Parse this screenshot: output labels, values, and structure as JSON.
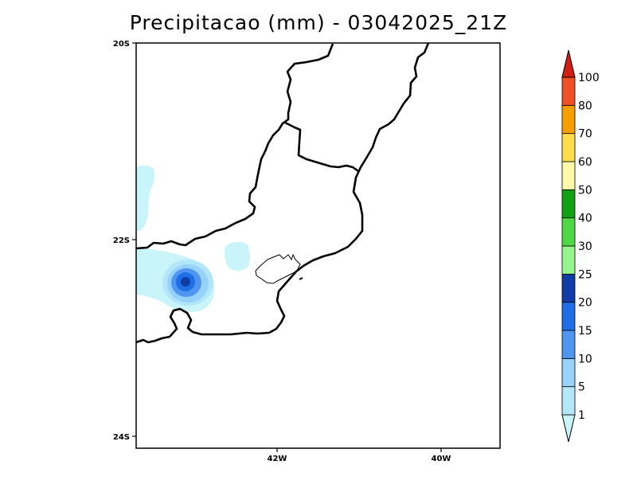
{
  "title": "Precipitacao (mm) - 03042025_21Z",
  "axes": {
    "lat_ticks": [
      "20S",
      "22S",
      "24S"
    ],
    "lon_ticks": [
      "42W",
      "40W"
    ]
  },
  "colorbar": {
    "labels": [
      "1",
      "5",
      "10",
      "15",
      "20",
      "25",
      "30",
      "40",
      "50",
      "60",
      "70",
      "80",
      "100"
    ],
    "colors": [
      "#c8f4fa",
      "#b4e6fa",
      "#96d2fa",
      "#5096f0",
      "#1e6ee6",
      "#0f3ca5",
      "#96f58c",
      "#50d746",
      "#14a014",
      "#fffaaa",
      "#ffdc4b",
      "#f5a000",
      "#f05028",
      "#d21e14"
    ]
  },
  "precip_colors": {
    "light": "#c8f4fa",
    "mid": "#b4e6fa",
    "med": "#96d2fa",
    "blue": "#5096f0",
    "dark": "#1e6ee6",
    "darkest": "#0f3ca5"
  }
}
